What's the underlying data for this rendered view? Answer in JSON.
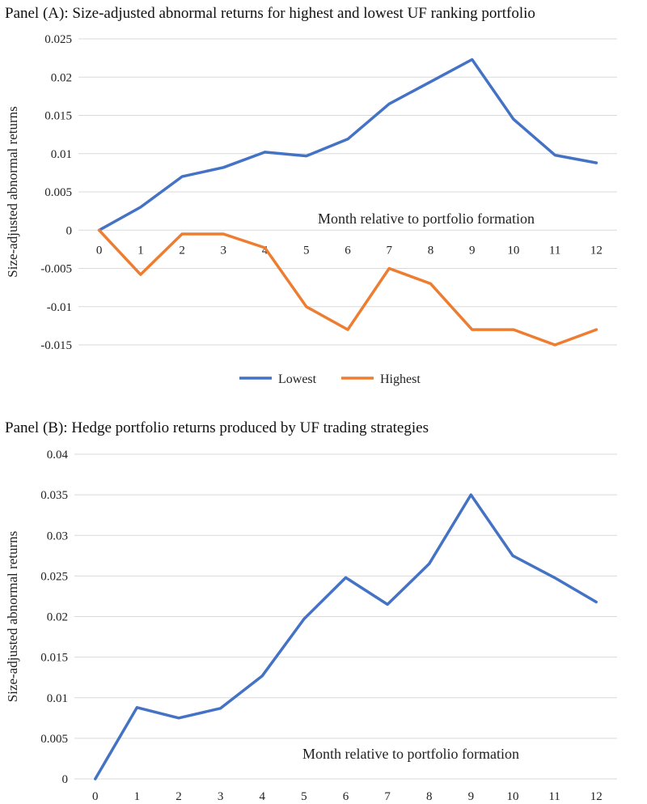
{
  "panels": [
    {
      "title": "Panel (A): Size-adjusted abnormal returns for highest and lowest UF ranking portfolio"
    },
    {
      "title": "Panel (B): Hedge portfolio returns produced by UF trading strategies"
    }
  ],
  "chart_data": [
    {
      "type": "line",
      "title": "Panel (A): Size-adjusted abnormal returns for highest and lowest UF ranking portfolio",
      "xlabel": "Month relative to portfolio formation",
      "ylabel": "Size-adjusted abnormal returns",
      "categories": [
        "0",
        "1",
        "2",
        "3",
        "4",
        "5",
        "6",
        "7",
        "8",
        "9",
        "10",
        "11",
        "12"
      ],
      "yticks": [
        "0.025",
        "0.02",
        "0.015",
        "0.01",
        "0.005",
        "0",
        "-0.005",
        "-0.01",
        "-0.015"
      ],
      "ylim": [
        -0.015,
        0.025
      ],
      "grid": true,
      "legend": "bottom",
      "series": [
        {
          "name": "Lowest",
          "color": "#4472C4",
          "values": [
            0,
            0.003,
            0.007,
            0.0082,
            0.0102,
            0.0097,
            0.0119,
            0.0165,
            0.0194,
            0.0223,
            0.0145,
            0.0098,
            0.0088
          ]
        },
        {
          "name": "Highest",
          "color": "#ED7D31",
          "values": [
            0,
            -0.0058,
            -0.0005,
            -0.0005,
            -0.0023,
            -0.01,
            -0.013,
            -0.005,
            -0.007,
            -0.013,
            -0.013,
            -0.015,
            -0.013
          ]
        }
      ]
    },
    {
      "type": "line",
      "title": "Panel (B): Hedge portfolio returns produced by UF trading strategies",
      "xlabel": "Month relative to portfolio formation",
      "ylabel": "Size-adjusted abnormal returns",
      "categories": [
        "0",
        "1",
        "2",
        "3",
        "4",
        "5",
        "6",
        "7",
        "8",
        "9",
        "10",
        "11",
        "12"
      ],
      "yticks": [
        "0.04",
        "0.035",
        "0.03",
        "0.025",
        "0.02",
        "0.015",
        "0.01",
        "0.005",
        "0"
      ],
      "ylim": [
        0,
        0.04
      ],
      "grid": true,
      "legend": "none",
      "series": [
        {
          "color": "#4472C4",
          "values": [
            0,
            0.0088,
            0.0075,
            0.0087,
            0.0127,
            0.0197,
            0.0248,
            0.0215,
            0.0265,
            0.035,
            0.0275,
            0.0248,
            0.0218
          ]
        }
      ]
    }
  ]
}
